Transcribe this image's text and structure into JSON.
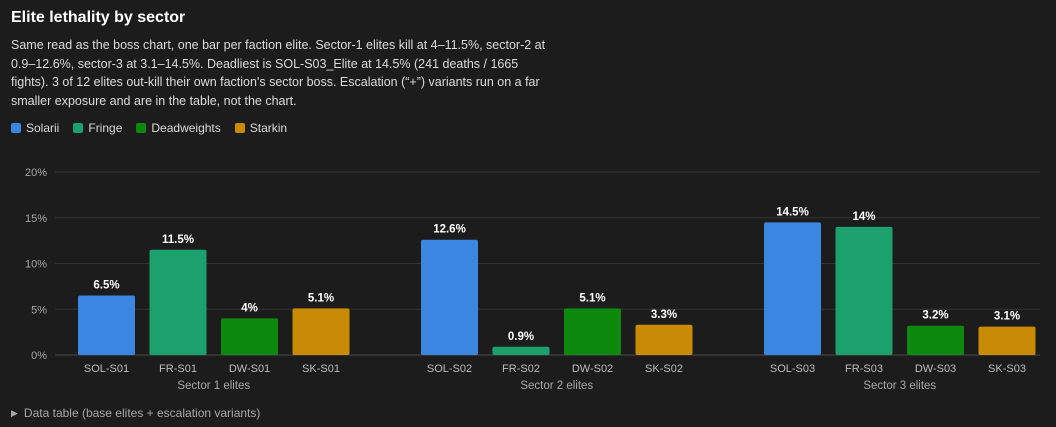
{
  "title": "Elite lethality by sector",
  "description": "Same read as the boss chart, one bar per faction elite. Sector-1 elites kill at 4–11.5%, sector-2 at 0.9–12.6%, sector-3 at 3.1–14.5%. Deadliest is SOL-S03_Elite at 14.5% (241 deaths / 1665 fights). 3 of 12 elites out-kill their own faction's sector boss. Escalation (“+”) variants run on a far smaller exposure and are in the table, not the chart.",
  "legend": [
    {
      "label": "Solarii",
      "color": "#3a86e0"
    },
    {
      "label": "Fringe",
      "color": "#1ba06e"
    },
    {
      "label": "Deadweights",
      "color": "#0d8a0d"
    },
    {
      "label": "Starkin",
      "color": "#c98a06"
    }
  ],
  "footer": {
    "toggle_icon": "triangle-right-icon",
    "label": "Data table (base elites + escalation variants)"
  },
  "chart_data": {
    "type": "bar",
    "title": "Elite lethality by sector",
    "ylim": [
      0,
      20
    ],
    "yticks": [
      "0%",
      "5%",
      "10%",
      "15%",
      "20%"
    ],
    "grid": true,
    "legend_position": "top-left",
    "groups": [
      {
        "label": "Sector 1 elites",
        "bars": [
          {
            "category": "SOL-S01",
            "faction": "Solarii",
            "value": 6.5,
            "label": "6.5%"
          },
          {
            "category": "FR-S01",
            "faction": "Fringe",
            "value": 11.5,
            "label": "11.5%"
          },
          {
            "category": "DW-S01",
            "faction": "Deadweights",
            "value": 4,
            "label": "4%"
          },
          {
            "category": "SK-S01",
            "faction": "Starkin",
            "value": 5.1,
            "label": "5.1%"
          }
        ]
      },
      {
        "label": "Sector 2 elites",
        "bars": [
          {
            "category": "SOL-S02",
            "faction": "Solarii",
            "value": 12.6,
            "label": "12.6%"
          },
          {
            "category": "FR-S02",
            "faction": "Fringe",
            "value": 0.9,
            "label": "0.9%"
          },
          {
            "category": "DW-S02",
            "faction": "Deadweights",
            "value": 5.1,
            "label": "5.1%"
          },
          {
            "category": "SK-S02",
            "faction": "Starkin",
            "value": 3.3,
            "label": "3.3%"
          }
        ]
      },
      {
        "label": "Sector 3 elites",
        "bars": [
          {
            "category": "SOL-S03",
            "faction": "Solarii",
            "value": 14.5,
            "label": "14.5%"
          },
          {
            "category": "FR-S03",
            "faction": "Fringe",
            "value": 14,
            "label": "14%"
          },
          {
            "category": "DW-S03",
            "faction": "Deadweights",
            "value": 3.2,
            "label": "3.2%"
          },
          {
            "category": "SK-S03",
            "faction": "Starkin",
            "value": 3.1,
            "label": "3.1%"
          }
        ]
      }
    ]
  }
}
